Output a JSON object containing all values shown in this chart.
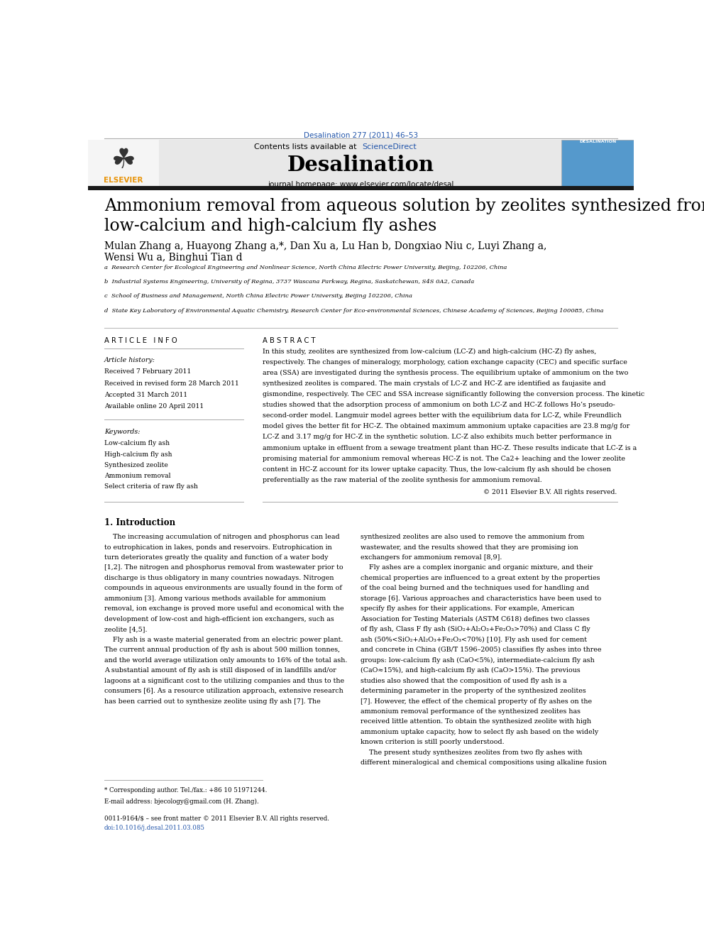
{
  "doi_text": "Desalination 277 (2011) 46–53",
  "journal_name": "Desalination",
  "journal_homepage": "journal homepage: www.elsevier.com/locate/desal",
  "contents_text": "Contents lists available at ScienceDirect",
  "paper_title": "Ammonium removal from aqueous solution by zeolites synthesized from\nlow-calcium and high-calcium fly ashes",
  "authors_line1": "Mulan Zhang a, Huayong Zhang a,*, Dan Xu a, Lu Han b, Dongxiao Niu c, Luyi Zhang a,",
  "authors_line2": "Wensi Wu a, Binghui Tian d",
  "affil_a": "a  Research Center for Ecological Engineering and Nonlinear Science, North China Electric Power University, Beijing, 102206, China",
  "affil_b": "b  Industrial Systems Engineering, University of Regina, 3737 Wascana Parkway, Regina, Saskatchewan, S4S 0A2, Canada",
  "affil_c": "c  School of Business and Management, North China Electric Power University, Beijing 102206, China",
  "affil_d": "d  State Key Laboratory of Environmental Aquatic Chemistry, Research Center for Eco-environmental Sciences, Chinese Academy of Sciences, Beijing 100085, China",
  "article_info_header": "A R T I C L E   I N F O",
  "abstract_header": "A B S T R A C T",
  "article_history_label": "Article history:",
  "received": "Received 7 February 2011",
  "revised": "Received in revised form 28 March 2011",
  "accepted": "Accepted 31 March 2011",
  "online": "Available online 20 April 2011",
  "keywords_label": "Keywords:",
  "keywords": [
    "Low-calcium fly ash",
    "High-calcium fly ash",
    "Synthesized zeolite",
    "Ammonium removal",
    "Select criteria of raw fly ash"
  ],
  "abstract_text": "In this study, zeolites are synthesized from low-calcium (LC-Z) and high-calcium (HC-Z) fly ashes,\nrespectively. The changes of mineralogy, morphology, cation exchange capacity (CEC) and specific surface\narea (SSA) are investigated during the synthesis process. The equilibrium uptake of ammonium on the two\nsynthesized zeolites is compared. The main crystals of LC-Z and HC-Z are identified as faujasite and\ngismondine, respectively. The CEC and SSA increase significantly following the conversion process. The kinetic\nstudies showed that the adsorption process of ammonium on both LC-Z and HC-Z follows Ho’s pseudo-\nsecond-order model. Langmuir model agrees better with the equilibrium data for LC-Z, while Freundlich\nmodel gives the better fit for HC-Z. The obtained maximum ammonium uptake capacities are 23.8 mg/g for\nLC-Z and 3.17 mg/g for HC-Z in the synthetic solution. LC-Z also exhibits much better performance in\nammonium uptake in effluent from a sewage treatment plant than HC-Z. These results indicate that LC-Z is a\npromising material for ammonium removal whereas HC-Z is not. The Ca2+ leaching and the lower zeolite\ncontent in HC-Z account for its lower uptake capacity. Thus, the low-calcium fly ash should be chosen\npreferentially as the raw material of the zeolite synthesis for ammonium removal.",
  "copyright": "© 2011 Elsevier B.V. All rights reserved.",
  "intro_header": "1. Introduction",
  "intro_col1_lines": [
    "    The increasing accumulation of nitrogen and phosphorus can lead",
    "to eutrophication in lakes, ponds and reservoirs. Eutrophication in",
    "turn deteriorates greatly the quality and function of a water body",
    "[1,2]. The nitrogen and phosphorus removal from wastewater prior to",
    "discharge is thus obligatory in many countries nowadays. Nitrogen",
    "compounds in aqueous environments are usually found in the form of",
    "ammonium [3]. Among various methods available for ammonium",
    "removal, ion exchange is proved more useful and economical with the",
    "development of low-cost and high-efficient ion exchangers, such as",
    "zeolite [4,5].",
    "    Fly ash is a waste material generated from an electric power plant.",
    "The current annual production of fly ash is about 500 million tonnes,",
    "and the world average utilization only amounts to 16% of the total ash.",
    "A substantial amount of fly ash is still disposed of in landfills and/or",
    "lagoons at a significant cost to the utilizing companies and thus to the",
    "consumers [6]. As a resource utilization approach, extensive research",
    "has been carried out to synthesize zeolite using fly ash [7]. The"
  ],
  "intro_col2_lines": [
    "synthesized zeolites are also used to remove the ammonium from",
    "wastewater, and the results showed that they are promising ion",
    "exchangers for ammonium removal [8,9].",
    "    Fly ashes are a complex inorganic and organic mixture, and their",
    "chemical properties are influenced to a great extent by the properties",
    "of the coal being burned and the techniques used for handling and",
    "storage [6]. Various approaches and characteristics have been used to",
    "specify fly ashes for their applications. For example, American",
    "Association for Testing Materials (ASTM C618) defines two classes",
    "of fly ash, Class F fly ash (SiO₂+Al₂O₃+Fe₂O₃>70%) and Class C fly",
    "ash (50%<SiO₂+Al₂O₃+Fe₂O₃<70%) [10]. Fly ash used for cement",
    "and concrete in China (GB/T 1596–2005) classifies fly ashes into three",
    "groups: low-calcium fly ash (CaO<5%), intermediate-calcium fly ash",
    "(CaO≈15%), and high-calcium fly ash (CaO>15%). The previous",
    "studies also showed that the composition of used fly ash is a",
    "determining parameter in the property of the synthesized zeolites",
    "[7]. However, the effect of the chemical property of fly ashes on the",
    "ammonium removal performance of the synthesized zeolites has",
    "received little attention. To obtain the synthesized zeolite with high",
    "ammonium uptake capacity, how to select fly ash based on the widely",
    "known criterion is still poorly understood.",
    "    The present study synthesizes zeolites from two fly ashes with",
    "different mineralogical and chemical compositions using alkaline fusion"
  ],
  "footnote1": "* Corresponding author. Tel./fax.: +86 10 51971244.",
  "footnote2": "E-mail address: bjecology@gmail.com (H. Zhang).",
  "footnote3": "0011-9164/$ – see front matter © 2011 Elsevier B.V. All rights reserved.",
  "footnote4": "doi:10.1016/j.desal.2011.03.085",
  "bg_color": "#ffffff",
  "header_bg": "#e8e8e8",
  "link_color": "#2255aa",
  "title_color": "#000000",
  "text_color": "#000000",
  "top_bar_color": "#1a1a1a"
}
